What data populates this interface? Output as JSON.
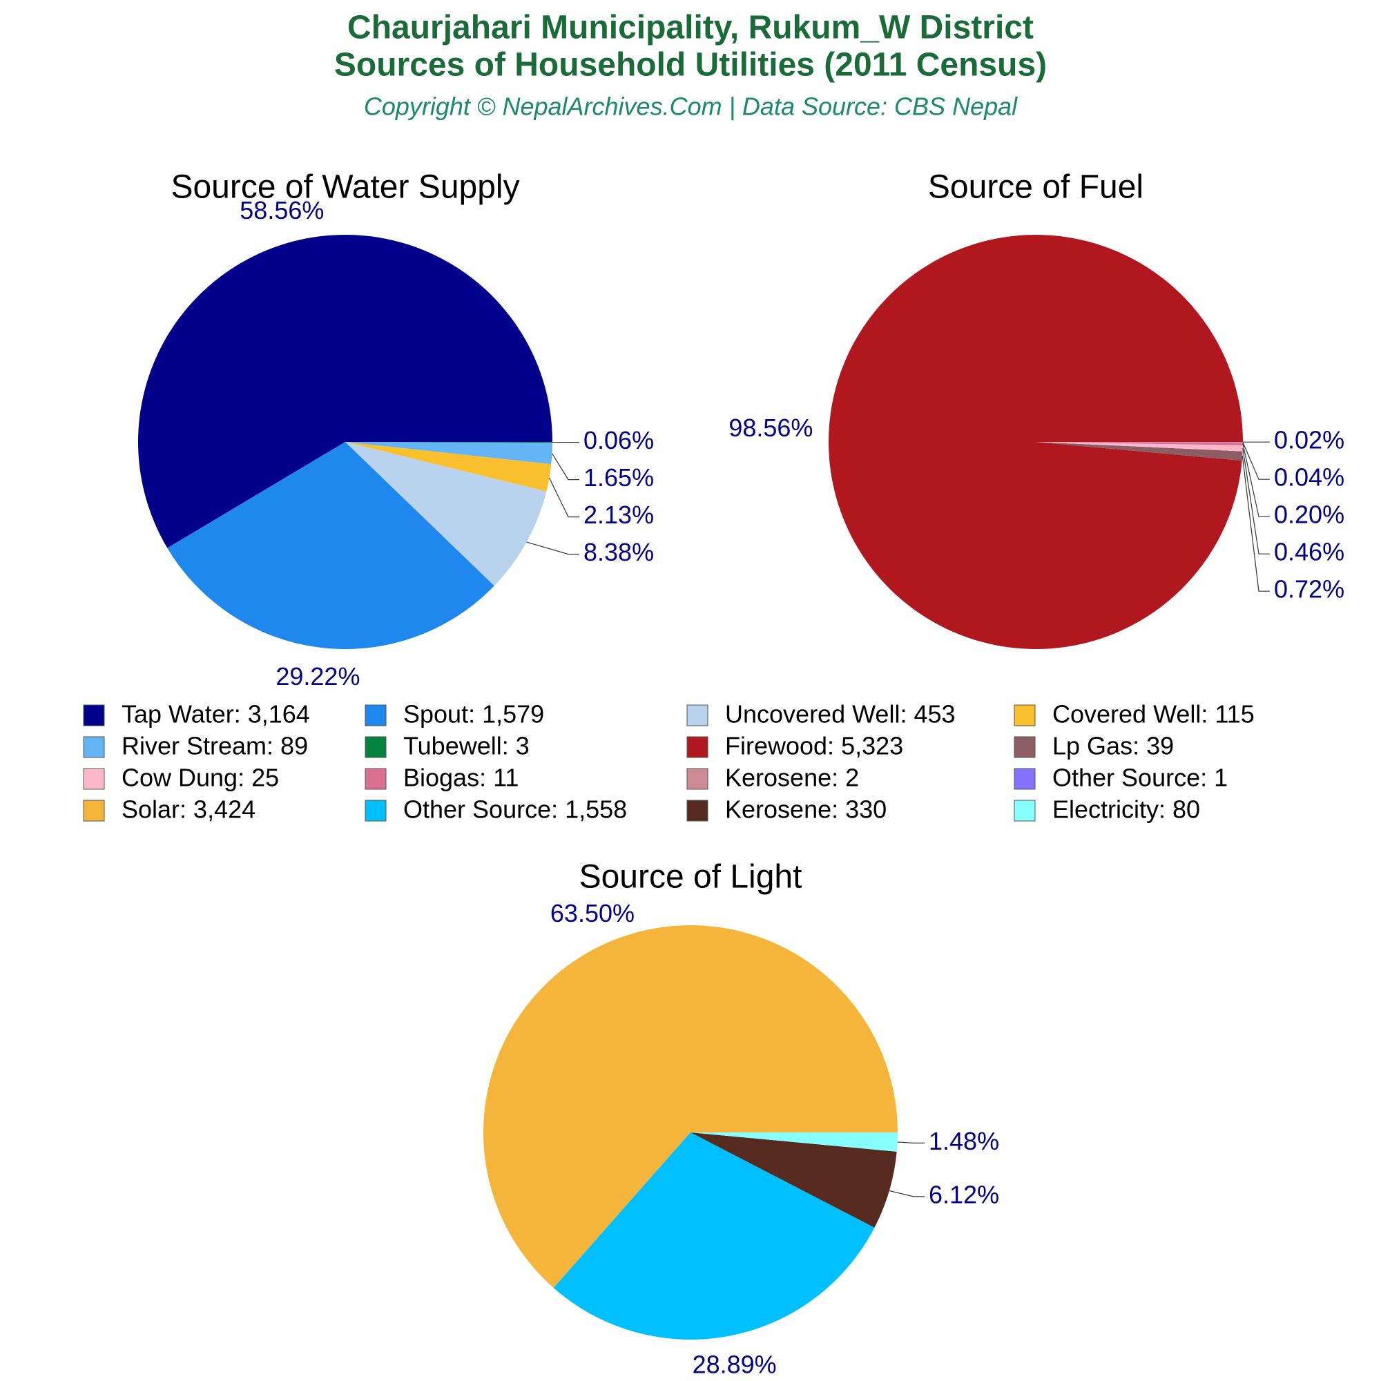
{
  "header": {
    "title_lines": [
      "Chaurjahari Municipality, Rukum_W District",
      "Sources of Household Utilities (2011 Census)"
    ],
    "subtitle": "Copyright © NepalArchives.Com | Data Source: CBS Nepal"
  },
  "chart_data": [
    {
      "type": "pie",
      "title": "Source of Water Supply",
      "categories": [
        "Tap Water",
        "Spout",
        "Uncovered Well",
        "Covered Well",
        "River Stream",
        "Tubewell"
      ],
      "values": [
        58.56,
        29.22,
        8.38,
        2.13,
        1.65,
        0.06
      ],
      "value_labels": [
        "58.56%",
        "29.22%",
        "8.38%",
        "2.13%",
        "1.65%",
        "0.06%"
      ],
      "legend_labels": [
        "Tap Water: 3,164",
        "Spout: 1,579",
        "Uncovered Well: 453",
        "Covered Well: 115",
        "River Stream: 89",
        "Tubewell: 3"
      ],
      "colors": [
        "#00008b",
        "#1e88ee",
        "#b9d3ee",
        "#fbc02d",
        "#64b5f6",
        "#00843d"
      ]
    },
    {
      "type": "pie",
      "title": "Source of Fuel",
      "categories": [
        "Firewood",
        "Lp Gas",
        "Cow Dung",
        "Biogas",
        "Kerosene",
        "Other Source"
      ],
      "values": [
        98.56,
        0.72,
        0.46,
        0.2,
        0.04,
        0.02
      ],
      "value_labels": [
        "98.56%",
        "0.72%",
        "0.46%",
        "0.20%",
        "0.04%",
        "0.02%"
      ],
      "legend_labels": [
        "Firewood: 5,323",
        "Lp Gas: 39",
        "Cow Dung: 25",
        "Biogas: 11",
        "Kerosene: 2",
        "Other Source: 1"
      ],
      "colors": [
        "#b0171f",
        "#8b5e66",
        "#ffb6c8",
        "#db7093",
        "#cd8c95",
        "#8470ff"
      ]
    },
    {
      "type": "pie",
      "title": "Source of Light",
      "categories": [
        "Solar",
        "Other Source",
        "Kerosene",
        "Electricity"
      ],
      "values": [
        63.5,
        28.89,
        6.12,
        1.48
      ],
      "value_labels": [
        "63.50%",
        "28.89%",
        "6.12%",
        "1.48%"
      ],
      "legend_labels": [
        "Solar: 3,424",
        "Other Source: 1,558",
        "Kerosene: 330",
        "Electricity: 80"
      ],
      "colors": [
        "#f5b53a",
        "#00bfff",
        "#562a1e",
        "#87ffff"
      ]
    }
  ]
}
